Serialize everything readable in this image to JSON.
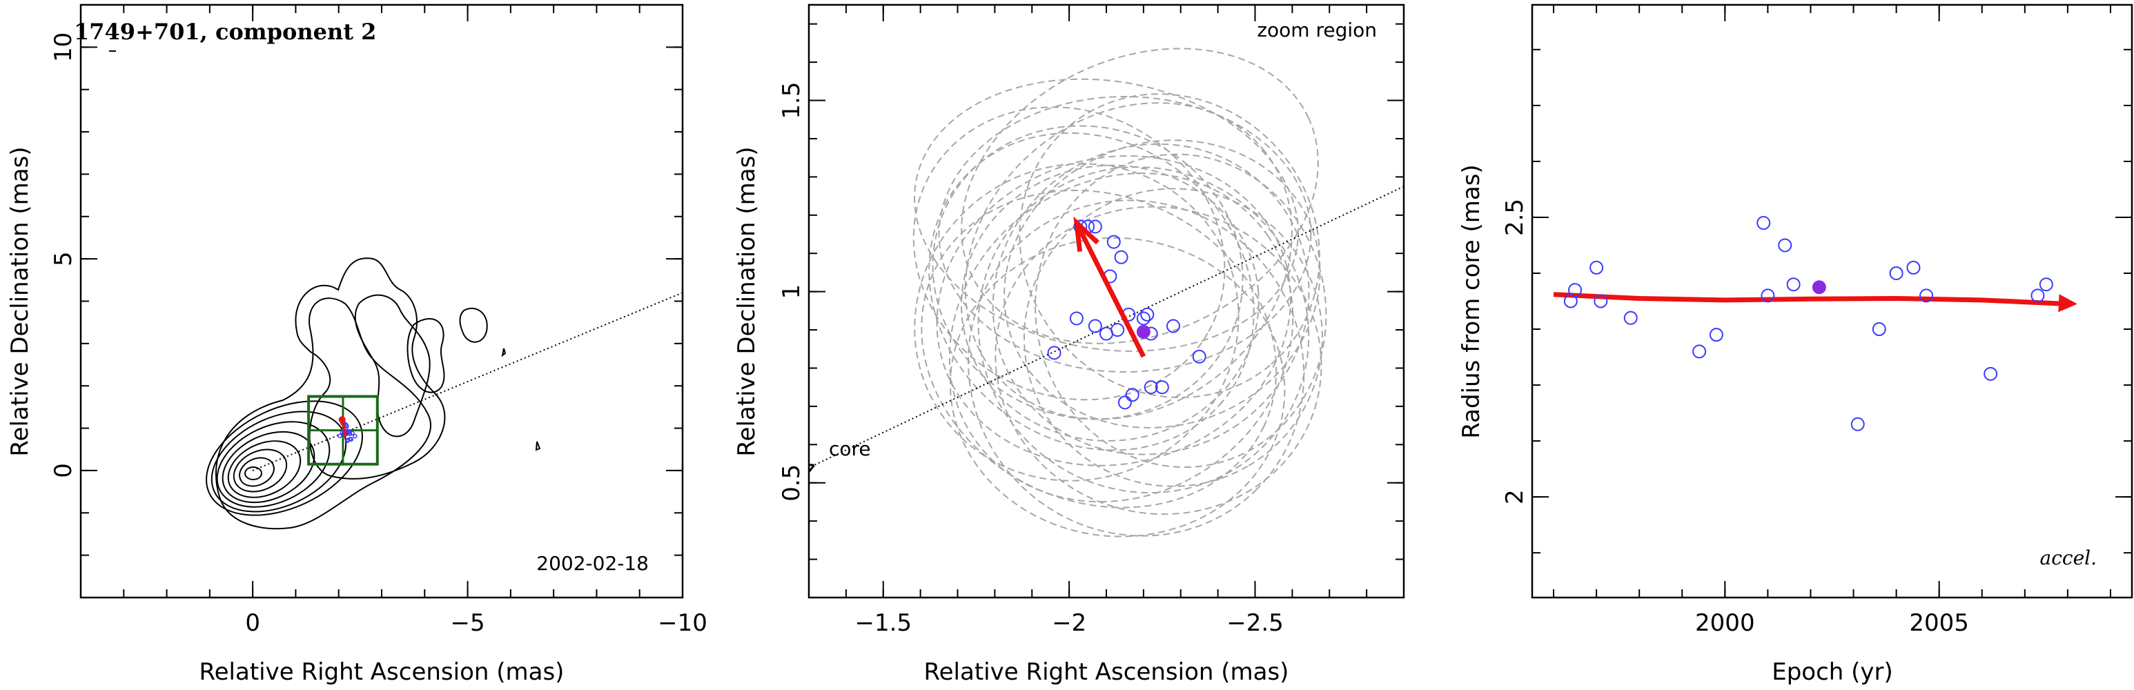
{
  "chart_data": [
    {
      "type": "contour",
      "title": "1749+701, component 2",
      "date": "2002-02-18",
      "xlabel": "Relative Right Ascension (mas)",
      "ylabel": "Relative Declination (mas)",
      "xlim": [
        4,
        -10
      ],
      "ylim": [
        -3,
        11
      ],
      "xticks": [
        0,
        -5,
        -10
      ],
      "yticks": [
        0,
        5,
        10
      ],
      "ridge_line": {
        "x": [
          0,
          -10
        ],
        "y": [
          0,
          4.2
        ]
      },
      "zoom_box": {
        "x": [
          -1.3,
          -2.9
        ],
        "y": [
          0.15,
          1.75
        ]
      },
      "component_position": {
        "x": -2.2,
        "y": 0.9
      },
      "colors": {
        "contour": "#000000",
        "box": "#1a6b1a",
        "points": "#3a3aff",
        "arrow": "#ee1111"
      }
    },
    {
      "type": "scatter",
      "annotations": [
        "zoom region",
        "core"
      ],
      "xlabel": "Relative Right Ascension (mas)",
      "ylabel": "Relative Declination (mas)",
      "xlim": [
        -1.3,
        -2.9
      ],
      "ylim": [
        0.2,
        1.75
      ],
      "xticks": [
        -1.5,
        -2,
        -2.5
      ],
      "yticks": [
        0.5,
        1,
        1.5
      ],
      "points": {
        "x": [
          -1.96,
          -2.02,
          -2.03,
          -2.05,
          -2.07,
          -2.12,
          -2.11,
          -2.14,
          -2.07,
          -2.1,
          -2.13,
          -2.16,
          -2.2,
          -2.21,
          -2.22,
          -2.28,
          -2.22,
          -2.25,
          -2.17,
          -2.15,
          -2.35
        ],
        "y": [
          0.84,
          0.93,
          1.17,
          1.17,
          1.17,
          1.13,
          1.04,
          1.09,
          0.91,
          0.89,
          0.9,
          0.94,
          0.93,
          0.94,
          0.89,
          0.91,
          0.75,
          0.75,
          0.73,
          0.71,
          0.83
        ]
      },
      "mean_point": {
        "x": -2.2,
        "y": 0.895
      },
      "arrow": {
        "from": {
          "x": -2.2,
          "y": 0.83
        },
        "to": {
          "x": -2.02,
          "y": 1.18
        }
      },
      "ridge_line": {
        "x": [
          -1.3,
          -2.9
        ],
        "y": [
          0.545,
          1.275
        ]
      },
      "beam_ellipses": {
        "cx": [
          -2.05,
          -2.12,
          -2.2,
          -2.15,
          -2.28,
          -2.02,
          -2.1,
          -2.18,
          -2.25,
          -2.08,
          -2.16,
          -2.22,
          -2.13,
          -2.3,
          -2.0,
          -2.19,
          -2.24,
          -2.06,
          -2.14,
          -2.27,
          -2.11
        ],
        "cy": [
          1.05,
          0.95,
          0.9,
          1.15,
          0.88,
          0.92,
          1.2,
          0.8,
          1.02,
          0.85,
          1.08,
          0.98,
          0.75,
          0.95,
          1.1,
          1.25,
          0.82,
          1.0,
          0.88,
          1.12,
          0.97
        ],
        "rx": [
          0.42,
          0.48,
          0.45,
          0.5,
          0.4,
          0.44,
          0.52,
          0.46,
          0.43,
          0.49,
          0.47,
          0.41,
          0.45,
          0.39,
          0.43,
          0.5,
          0.44,
          0.46,
          0.48,
          0.42,
          0.4
        ],
        "ry": [
          0.38,
          0.4,
          0.42,
          0.36,
          0.39,
          0.41,
          0.35,
          0.43,
          0.37,
          0.4,
          0.38,
          0.42,
          0.39,
          0.41,
          0.37,
          0.36,
          0.4,
          0.39,
          0.41,
          0.38,
          0.36
        ],
        "rot_deg": [
          20,
          -15,
          35,
          0,
          60,
          -30,
          10,
          45,
          -20,
          25,
          -40,
          55,
          5,
          -10,
          30,
          -25,
          15,
          40,
          -35,
          50,
          -5
        ],
        "color": "#a6a6a6"
      }
    },
    {
      "type": "scatter",
      "annotations": [
        "accel."
      ],
      "xlabel": "Epoch (yr)",
      "ylabel": "Radius from core (mas)",
      "xlim": [
        1995.5,
        2009.5
      ],
      "ylim": [
        1.82,
        2.88
      ],
      "xticks": [
        2000,
        2005
      ],
      "yticks": [
        2,
        2.5
      ],
      "points": {
        "x": [
          1996.4,
          1996.5,
          1997.0,
          1997.1,
          1997.8,
          1999.4,
          1999.8,
          2000.9,
          2001.0,
          2001.4,
          2001.6,
          2003.1,
          2003.6,
          2004.0,
          2004.4,
          2004.7,
          2006.2,
          2007.3,
          2007.5
        ],
        "y": [
          2.35,
          2.37,
          2.41,
          2.35,
          2.32,
          2.26,
          2.29,
          2.49,
          2.36,
          2.45,
          2.38,
          2.13,
          2.3,
          2.4,
          2.41,
          2.36,
          2.22,
          2.36,
          2.38
        ]
      },
      "mean_point": {
        "x": 2002.2,
        "y": 2.375
      },
      "fit_curve": {
        "x": [
          1996.0,
          1998.0,
          2000.0,
          2002.0,
          2004.0,
          2006.0,
          2008.0
        ],
        "y": [
          2.362,
          2.355,
          2.352,
          2.354,
          2.355,
          2.352,
          2.345
        ]
      }
    }
  ]
}
